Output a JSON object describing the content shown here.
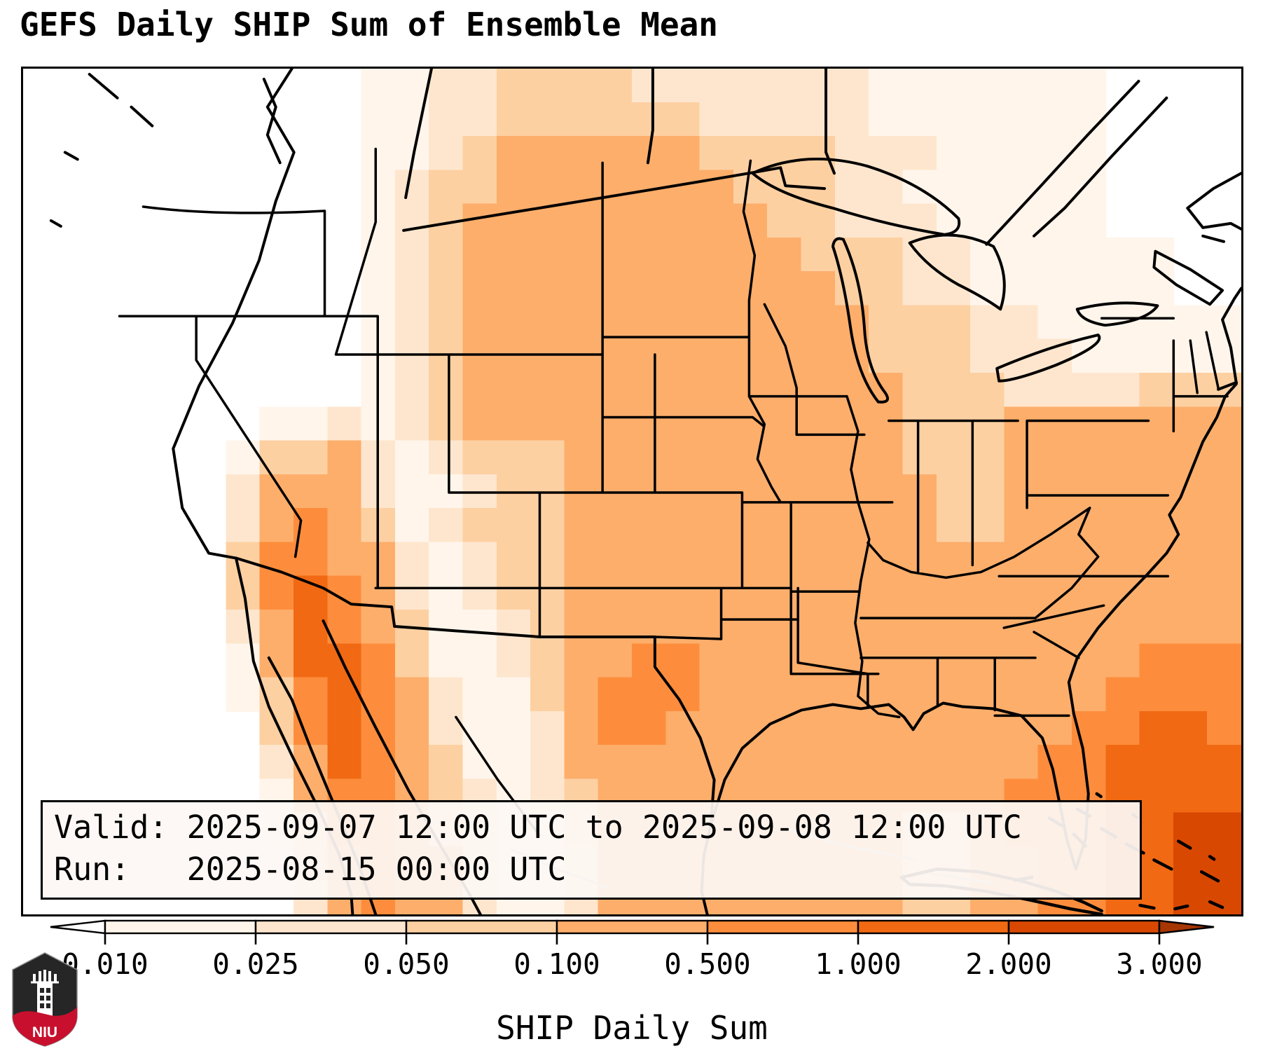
{
  "title": "GEFS Daily SHIP Sum of Ensemble Mean",
  "info_box": {
    "valid_line": "Valid: 2025-09-07 12:00 UTC to 2025-09-08 12:00 UTC",
    "run_line": "Run:   2025-08-15 00:00 UTC"
  },
  "logo": {
    "text": "NIU",
    "shield_color": "#262626",
    "band_color": "#c8102e"
  },
  "chart_data": {
    "type": "heatmap",
    "title": "GEFS Daily SHIP Sum of Ensemble Mean",
    "colorbar_label": "SHIP Daily Sum",
    "boundaries": [
      0.01,
      0.025,
      0.05,
      0.1,
      0.5,
      1.0,
      2.0,
      3.0
    ],
    "tick_labels": [
      "0.010",
      "0.025",
      "0.050",
      "0.100",
      "0.500",
      "1.000",
      "2.000",
      "3.000"
    ],
    "extend": "both",
    "colormap": "Oranges",
    "palette": [
      "#ffffff",
      "#fff5eb",
      "#fee6ce",
      "#fdd0a2",
      "#fdae6b",
      "#fd8d3c",
      "#f16913",
      "#d94801",
      "#a63603"
    ],
    "legend_note": "cell values are palette indices; 0 = < 0.010 (white), 8 = > 3.000",
    "grid": {
      "cols": 36,
      "rows": 25,
      "cells": [
        "000000000011223333222222211111110000",
        "000000000011223333332222211111110000",
        "000000000011234444443333222111110000",
        "000000000012334444444333221111110000",
        "000000000012344444444433222111110000",
        "000000000012344444444443332211111100",
        "000000000012344444444444332211111100",
        "000000000012344444444444433322111111",
        "000000000012344444444444433322211111",
        "000000000012344444444444443332222333",
        "000000011212344444444444443334444444",
        "000000133421233344444444443334444444",
        "000000244421123344444444444334444444",
        "000000245431233344444444444334444444",
        "000000355442123344444444444444444444",
        "000000356542123344444444444444444444",
        "000000246543112344444444444444444444",
        "000000146653112344554444444444444555",
        "000000135654211345554444444444445555",
        "000000035654211245544444444444455665",
        "000000024654311244444444444444556666",
        "000000014554321234444444444445556666",
        "000000013554321134444444443345556677",
        "000000003454421124444444443344556677",
        "000000002454421124444444443344556677"
      ]
    }
  }
}
